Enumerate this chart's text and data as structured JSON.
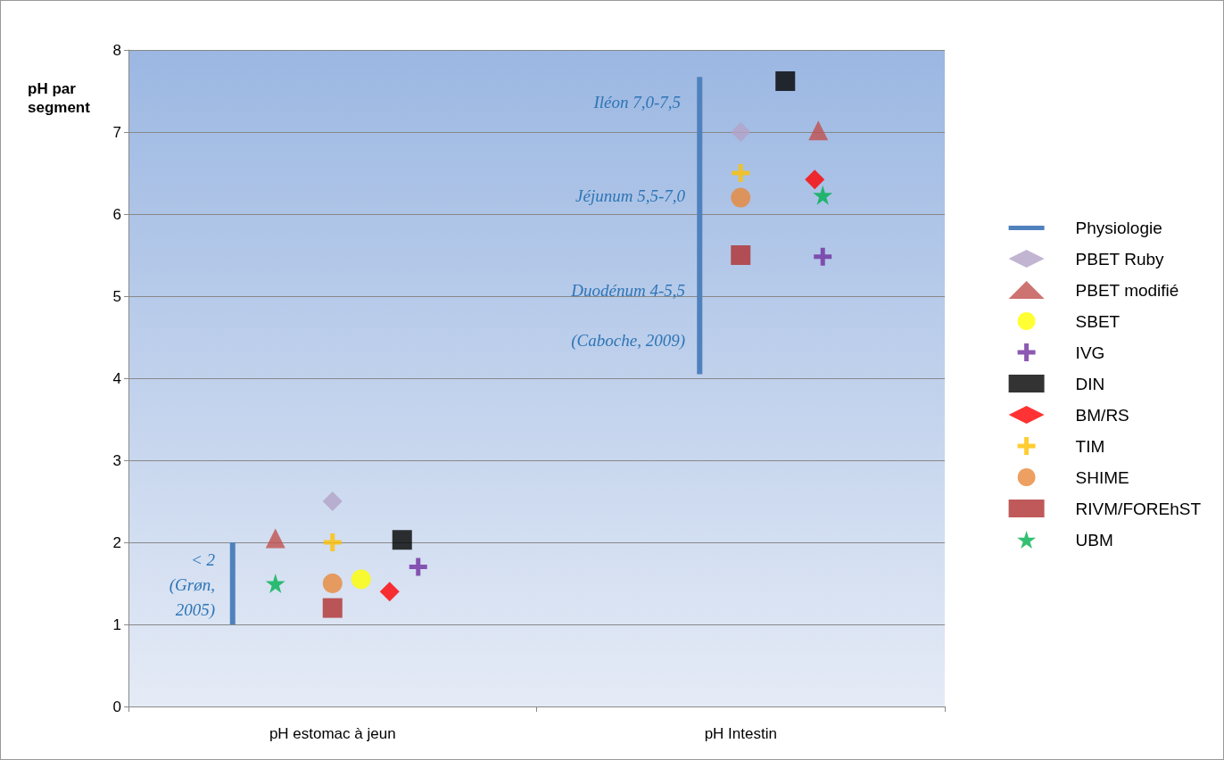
{
  "chart_data": {
    "type": "scatter",
    "ylabel": "pH par segment",
    "categories": [
      "pH estomac à jeun",
      "pH Intestin"
    ],
    "ylim": [
      0,
      8
    ],
    "yticks": [
      0,
      1,
      2,
      3,
      4,
      5,
      6,
      7,
      8
    ],
    "grid": "y",
    "legend": "right",
    "series": [
      {
        "name": "Physiologie",
        "type": "bar",
        "color": "#4f81bd",
        "base": [
          1,
          4.05
        ],
        "values": [
          1,
          3.62
        ]
      },
      {
        "name": "PBET Ruby",
        "marker": "diamond",
        "color": "#b3a2c7",
        "x": [
          "pH estomac à jeun",
          "pH Intestin"
        ],
        "values": [
          2.5,
          7.0
        ]
      },
      {
        "name": "PBET modifié",
        "marker": "triangle",
        "color": "#c0504d",
        "x": [
          "pH estomac à jeun",
          "pH Intestin"
        ],
        "values": [
          2.05,
          7.02
        ]
      },
      {
        "name": "SBET",
        "marker": "circle",
        "color": "#ffff00",
        "x": [
          "pH estomac à jeun"
        ],
        "values": [
          1.55
        ]
      },
      {
        "name": "IVG",
        "marker": "cross",
        "color": "#7030a0",
        "x": [
          "pH estomac à jeun",
          "pH Intestin"
        ],
        "values": [
          1.7,
          5.48
        ]
      },
      {
        "name": "DIN",
        "marker": "square",
        "color": "#000000",
        "x": [
          "pH estomac à jeun",
          "pH Intestin"
        ],
        "values": [
          2.03,
          7.62
        ]
      },
      {
        "name": "BM/RS",
        "marker": "diamond",
        "color": "#ff0000",
        "x": [
          "pH estomac à jeun",
          "pH Intestin"
        ],
        "values": [
          1.4,
          6.42
        ]
      },
      {
        "name": "TIM",
        "marker": "cross",
        "color": "#ffc000",
        "x": [
          "pH estomac à jeun",
          "pH Intestin"
        ],
        "values": [
          2.0,
          6.5
        ]
      },
      {
        "name": "SHIME",
        "marker": "circle",
        "color": "#e8883a",
        "x": [
          "pH estomac à jeun",
          "pH Intestin"
        ],
        "values": [
          1.5,
          6.2
        ]
      },
      {
        "name": "RIVM/FOREhST",
        "marker": "square",
        "color": "#b03030",
        "x": [
          "pH estomac à jeun",
          "pH Intestin"
        ],
        "values": [
          1.2,
          5.5
        ]
      },
      {
        "name": "UBM",
        "marker": "star",
        "color": "#00b050",
        "x": [
          "pH estomac à jeun",
          "pH Intestin"
        ],
        "values": [
          1.5,
          6.23
        ]
      }
    ],
    "annotations": [
      "< 2\n(Grøn,\n2005)",
      "Iléon 7,0-7,5",
      "Jéjunum 5,5-7,0",
      "Duodénum 4-5,5",
      "(Caboche, 2009)"
    ]
  }
}
